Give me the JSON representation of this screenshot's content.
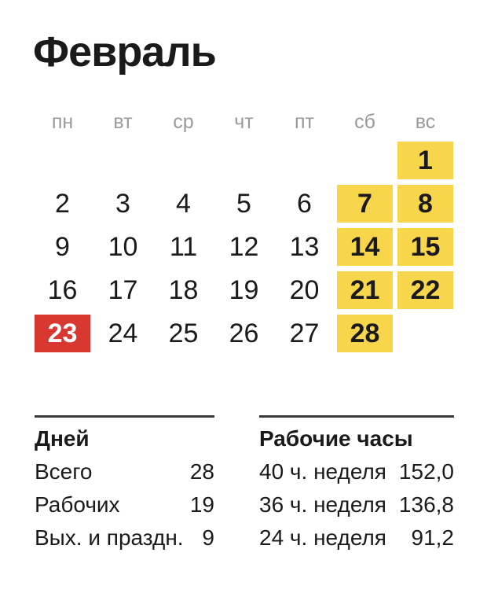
{
  "page": {
    "title": "Февраль"
  },
  "calendar": {
    "weekday_headers": [
      "пн",
      "вт",
      "ср",
      "чт",
      "пт",
      "сб",
      "вс"
    ],
    "days": [
      {
        "day": "1",
        "type": "weekend",
        "col": 7
      },
      {
        "day": "2",
        "type": "workday"
      },
      {
        "day": "3",
        "type": "workday"
      },
      {
        "day": "4",
        "type": "workday"
      },
      {
        "day": "5",
        "type": "workday"
      },
      {
        "day": "6",
        "type": "workday"
      },
      {
        "day": "7",
        "type": "weekend"
      },
      {
        "day": "8",
        "type": "weekend"
      },
      {
        "day": "9",
        "type": "workday"
      },
      {
        "day": "10",
        "type": "workday"
      },
      {
        "day": "11",
        "type": "workday"
      },
      {
        "day": "12",
        "type": "workday"
      },
      {
        "day": "13",
        "type": "workday"
      },
      {
        "day": "14",
        "type": "weekend"
      },
      {
        "day": "15",
        "type": "weekend"
      },
      {
        "day": "16",
        "type": "workday"
      },
      {
        "day": "17",
        "type": "workday"
      },
      {
        "day": "18",
        "type": "workday"
      },
      {
        "day": "19",
        "type": "workday"
      },
      {
        "day": "20",
        "type": "workday"
      },
      {
        "day": "21",
        "type": "weekend"
      },
      {
        "day": "22",
        "type": "weekend"
      },
      {
        "day": "23",
        "type": "holiday"
      },
      {
        "day": "24",
        "type": "workday"
      },
      {
        "day": "25",
        "type": "workday"
      },
      {
        "day": "26",
        "type": "workday"
      },
      {
        "day": "27",
        "type": "workday"
      },
      {
        "day": "28",
        "type": "weekend"
      }
    ],
    "colors": {
      "weekend_bg": "#F8D64B",
      "holiday_bg": "#D8382F",
      "holiday_text": "#FFFFFF",
      "weekday_header_text": "#9A9A9A",
      "day_text": "#1A1A1A",
      "divider": "#3A3A3A",
      "text": "#1A1A1A"
    }
  },
  "stats": {
    "days": {
      "header": "Дней",
      "rows": [
        {
          "label": "Всего",
          "value": "28"
        },
        {
          "label": "Рабочих",
          "value": "19"
        },
        {
          "label": "Вых. и праздн.",
          "value": "9"
        }
      ]
    },
    "hours": {
      "header": "Рабочие часы",
      "rows": [
        {
          "label": "40 ч. неделя",
          "value": "152,0"
        },
        {
          "label": "36 ч. неделя",
          "value": "136,8"
        },
        {
          "label": "24 ч. неделя",
          "value": "91,2"
        }
      ]
    }
  }
}
